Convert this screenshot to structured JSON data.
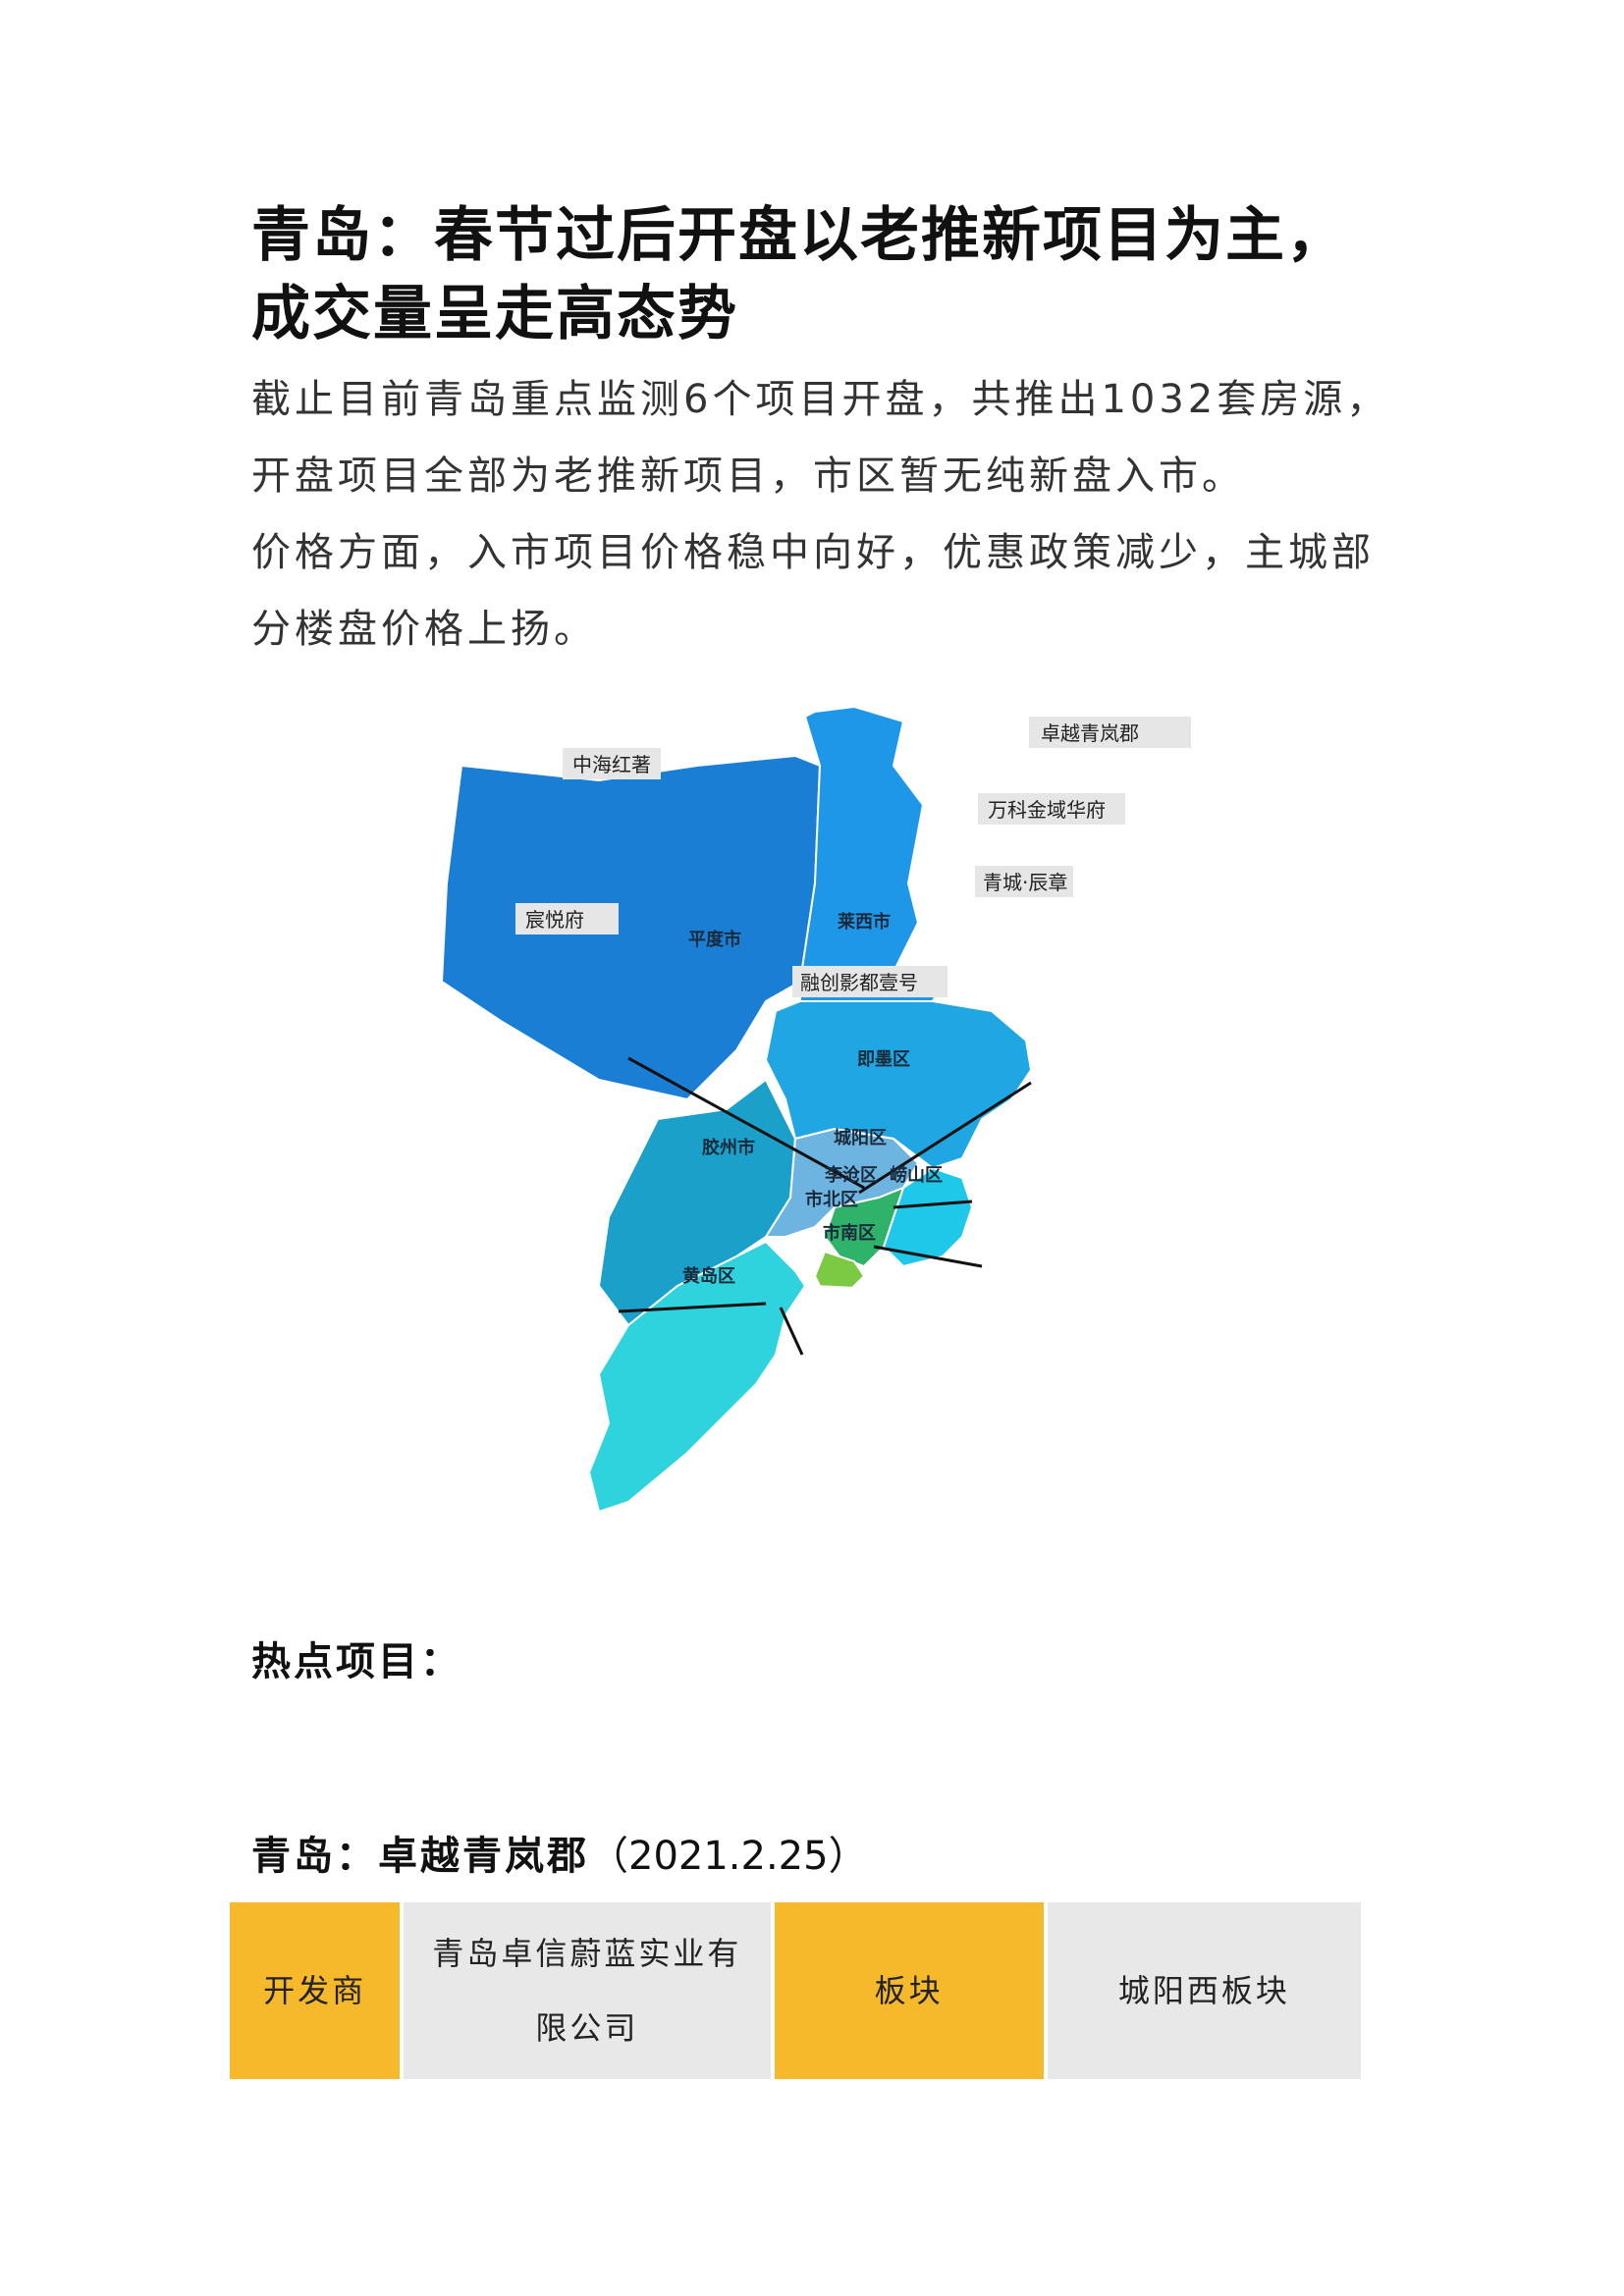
{
  "title": "青岛：春节过后开盘以老推新项目为主，成交量呈走高态势",
  "paragraphs": [
    "截止目前青岛重点监测6个项目开盘，共推出1032套房源，开盘项目全部为老推新项目，市区暂无纯新盘入市。",
    "价格方面，入市项目价格稳中向好，优惠政策减少，主城部分楼盘价格上扬。"
  ],
  "map": {
    "districts": {
      "pingdu": "平度市",
      "laixi": "莱西市",
      "jimo": "即墨区",
      "jiaozhou": "胶州市",
      "chengyang": "城阳区",
      "licang": "李沧区",
      "laoshan": "崂山区",
      "shibei": "市北区",
      "shinan": "市南区",
      "huangdao": "黄岛区"
    },
    "projects": {
      "zhuoyue": "卓越青岚郡",
      "zhonghai": "中海红著",
      "vanke": "万科金域华府",
      "qingcheng": "青城·辰章",
      "chenyue": "宸悦府",
      "rongchuang": "融创影都壹号"
    },
    "colors": {
      "pingdu": "#1a7fd4",
      "laixi": "#1f97e8",
      "jimo": "#20a6e2",
      "jiaozhou": "#1ba1c9",
      "chengyang": "#6eb4e0",
      "laoshan": "#1fc8e8",
      "licang": "#2fb36a",
      "shibei": "#7cc943",
      "huangdao": "#2ed3dd"
    }
  },
  "hot_projects_label": "热点项目：",
  "project": {
    "title": "青岛：卓越青岚郡",
    "date": "（2021.2.25）",
    "developer_label": "开发商",
    "developer": "青岛卓信蔚蓝实业有限公司",
    "sector_label": "板块",
    "sector": "城阳西板块"
  }
}
